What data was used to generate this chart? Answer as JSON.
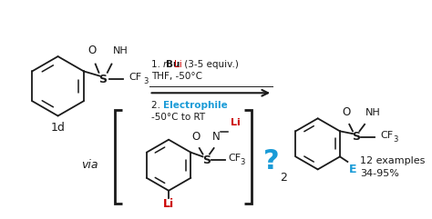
{
  "bg_color": "#ffffff",
  "figsize": [
    4.74,
    2.41
  ],
  "dpi": 100,
  "black": "#1a1a1a",
  "red": "#cc0000",
  "blue": "#1a9bd7",
  "label_1d": "1d",
  "label_2": "2",
  "label_examples": "12 examples",
  "label_yield": "34-95%",
  "label_via": "via",
  "label_question": "?",
  "step1_line1_parts": [
    "1. ",
    "n",
    "Bu",
    "Li",
    " (3-5 equiv.)"
  ],
  "step1_line1_colors": [
    "black",
    "black",
    "black",
    "red",
    "black"
  ],
  "step1_line1_styles": [
    "normal",
    "italic",
    "normal",
    "normal",
    "normal"
  ],
  "step1_line2": "THF, -50°C",
  "step2_label": "Electrophile",
  "step2_line2": "-50°C to RT",
  "xlim": [
    0,
    474
  ],
  "ylim": [
    0,
    241
  ]
}
